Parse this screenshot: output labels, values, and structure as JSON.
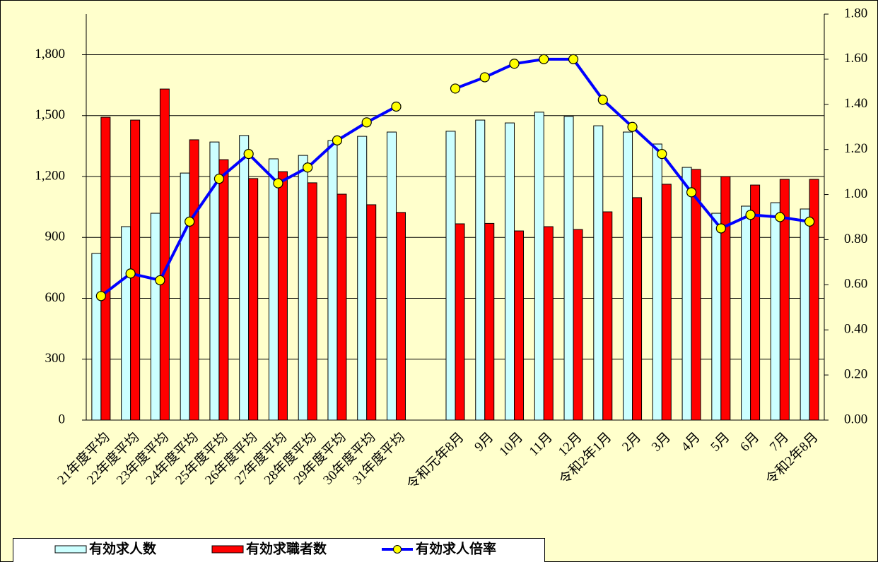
{
  "chart_data": {
    "type": "bar-line",
    "categories": [
      "21年度平均",
      "22年度平均",
      "23年度平均",
      "24年度平均",
      "25年度平均",
      "26年度平均",
      "27年度平均",
      "28年度平均",
      "29年度平均",
      "30年度平均",
      "31年度平均",
      null,
      "令和元年8月",
      "9月",
      "10月",
      "11月",
      "12月",
      "令和2年1月",
      "2月",
      "3月",
      "4月",
      "5月",
      "6月",
      "7月",
      "令和2年8月"
    ],
    "series": [
      {
        "name": "有効求人数",
        "type": "bar",
        "color": "#ccffff",
        "values": [
          821,
          953,
          1019,
          1217,
          1370,
          1402,
          1287,
          1304,
          1377,
          1398,
          1419,
          null,
          1423,
          1478,
          1464,
          1517,
          1496,
          1450,
          1419,
          1360,
          1245,
          1019,
          1054,
          1071,
          1040
        ]
      },
      {
        "name": "有効求職者数",
        "type": "bar",
        "color": "#ff0000",
        "values": [
          1492,
          1478,
          1631,
          1381,
          1283,
          1190,
          1224,
          1169,
          1113,
          1061,
          1023,
          null,
          967,
          969,
          932,
          953,
          939,
          1026,
          1096,
          1162,
          1235,
          1200,
          1158,
          1186,
          1186
        ]
      },
      {
        "name": "有効求人倍率",
        "type": "line",
        "axis": "y2",
        "color": "#0000ff",
        "marker_color": "#ffff00",
        "values": [
          0.55,
          0.65,
          0.62,
          0.88,
          1.07,
          1.18,
          1.05,
          1.12,
          1.24,
          1.32,
          1.39,
          null,
          1.47,
          1.52,
          1.58,
          1.6,
          1.6,
          1.42,
          1.3,
          1.18,
          1.01,
          0.85,
          0.91,
          0.9,
          0.88
        ]
      }
    ],
    "ylim": [
      0,
      2000
    ],
    "yticks": [
      0,
      300,
      600,
      900,
      {
        "value": 1200,
        "label": "1,200"
      },
      {
        "value": 1500,
        "label": "1,500"
      },
      {
        "value": 1800,
        "label": "1,800"
      }
    ],
    "y2lim": [
      0,
      1.8
    ],
    "y2ticks": [
      {
        "value": 0,
        "label": "0.00"
      },
      {
        "value": 0.2,
        "label": "0.20"
      },
      {
        "value": 0.4,
        "label": "0.40"
      },
      {
        "value": 0.6,
        "label": "0.60"
      },
      {
        "value": 0.8,
        "label": "0.80"
      },
      {
        "value": 1.0,
        "label": "1.00"
      },
      {
        "value": 1.2,
        "label": "1.20"
      },
      {
        "value": 1.4,
        "label": "1.40"
      },
      {
        "value": 1.6,
        "label": "1.60"
      },
      {
        "value": 1.8,
        "label": "1.80"
      }
    ],
    "grid": true,
    "legend": "bottom-left"
  }
}
